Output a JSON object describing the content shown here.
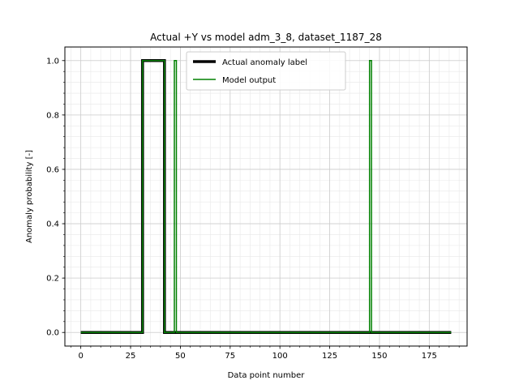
{
  "chart_data": {
    "type": "line",
    "title": "Actual +Y vs model adm_3_8, dataset_1187_28",
    "xlabel": "Data point number",
    "ylabel": "Anomaly probability [-]",
    "xlim": [
      -8,
      194
    ],
    "ylim": [
      -0.05,
      1.05
    ],
    "x_ticks": [
      0,
      25,
      50,
      75,
      100,
      125,
      150,
      175
    ],
    "x_tick_labels": [
      "0",
      "25",
      "50",
      "75",
      "100",
      "125",
      "150",
      "175"
    ],
    "y_ticks": [
      0.0,
      0.2,
      0.4,
      0.6,
      0.8,
      1.0
    ],
    "y_tick_labels": [
      "0.0",
      "0.2",
      "0.4",
      "0.6",
      "0.8",
      "1.0"
    ],
    "grid": true,
    "minor_grid": true,
    "legend_position": "top-center",
    "series": [
      {
        "name": "Actual anomaly label",
        "color": "#000000",
        "x": [
          0,
          31,
          31,
          42,
          42,
          186
        ],
        "y": [
          0,
          0,
          1,
          1,
          0,
          0
        ]
      },
      {
        "name": "Model output",
        "color": "#008000",
        "x": [
          0,
          31,
          31,
          42,
          42,
          47,
          47,
          48,
          48,
          145,
          145,
          146,
          146,
          186
        ],
        "y": [
          0,
          0,
          1,
          1,
          0,
          0,
          1,
          1,
          0,
          0,
          1,
          1,
          0,
          0
        ]
      }
    ]
  }
}
